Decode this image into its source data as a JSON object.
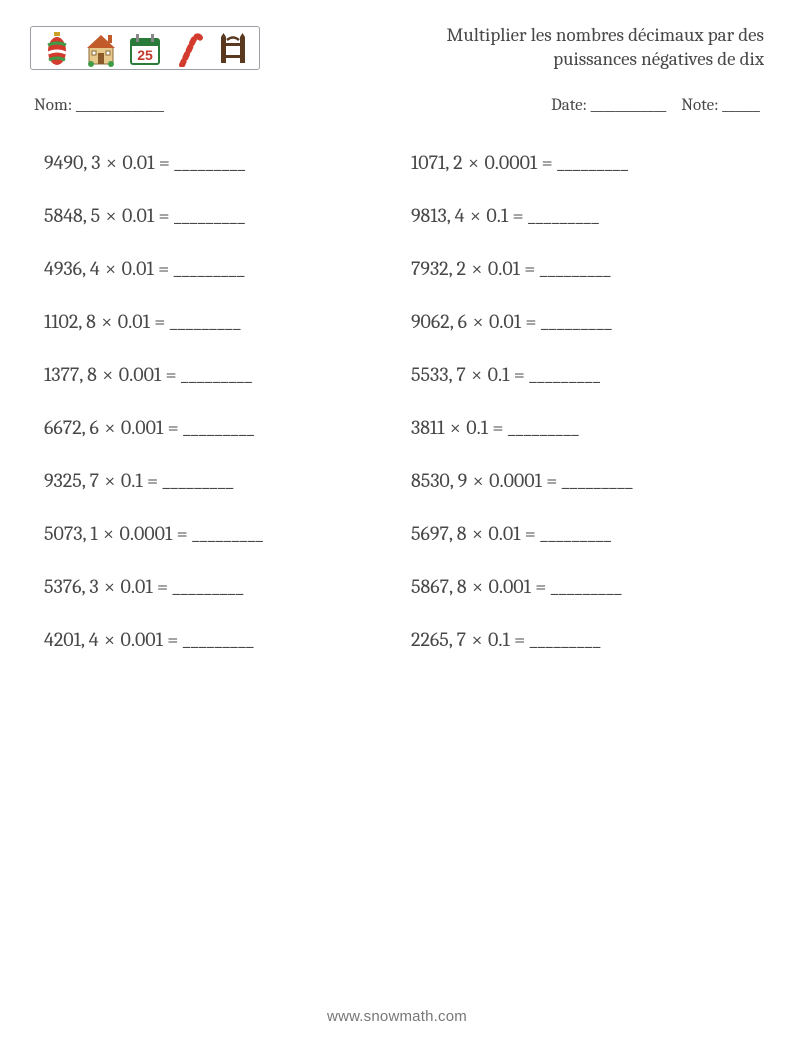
{
  "header": {
    "title_line1": "Multiplier les nombres décimaux par des",
    "title_line2": "puissances négatives de dix",
    "icons": [
      "ornament",
      "house",
      "calendar-25",
      "candy-cane",
      "fence"
    ]
  },
  "meta": {
    "name_label": "Nom: ______________",
    "date_label": "Date: ____________",
    "note_label": "Note: ______"
  },
  "blank": "_________",
  "problems": {
    "left": [
      {
        "a": "9490, 3",
        "b": "0.01"
      },
      {
        "a": "5848, 5",
        "b": "0.01"
      },
      {
        "a": "4936, 4",
        "b": "0.01"
      },
      {
        "a": "1102, 8",
        "b": "0.01"
      },
      {
        "a": "1377, 8",
        "b": "0.001"
      },
      {
        "a": "6672, 6",
        "b": "0.001"
      },
      {
        "a": "9325, 7",
        "b": "0.1"
      },
      {
        "a": "5073, 1",
        "b": "0.0001"
      },
      {
        "a": "5376, 3",
        "b": "0.01"
      },
      {
        "a": "4201, 4",
        "b": "0.001"
      }
    ],
    "right": [
      {
        "a": "1071, 2",
        "b": "0.0001"
      },
      {
        "a": "9813, 4",
        "b": "0.1"
      },
      {
        "a": "7932, 2",
        "b": "0.01"
      },
      {
        "a": "9062, 6",
        "b": "0.01"
      },
      {
        "a": "5533, 7",
        "b": "0.1"
      },
      {
        "a": "3811",
        "b": "0.1"
      },
      {
        "a": "8530, 9",
        "b": "0.0001"
      },
      {
        "a": "5697, 8",
        "b": "0.01"
      },
      {
        "a": "5867, 8",
        "b": "0.001"
      },
      {
        "a": "2265, 7",
        "b": "0.1"
      }
    ]
  },
  "footer": {
    "url": "www.snowmath.com"
  },
  "colors": {
    "text": "#484848",
    "border": "#9aa0a6",
    "footer": "#777777",
    "bg": "#ffffff",
    "ornament_red": "#d33b2f",
    "ornament_green": "#3e9b46",
    "ornament_gold": "#c9a227",
    "house_roof": "#c15b2a",
    "house_wall": "#e8c98c",
    "house_green": "#3e9b46",
    "cal_border": "#2a7a3a",
    "cal_red": "#c0392b",
    "cane_red": "#d33b2f",
    "fence_dark": "#5a3921"
  }
}
